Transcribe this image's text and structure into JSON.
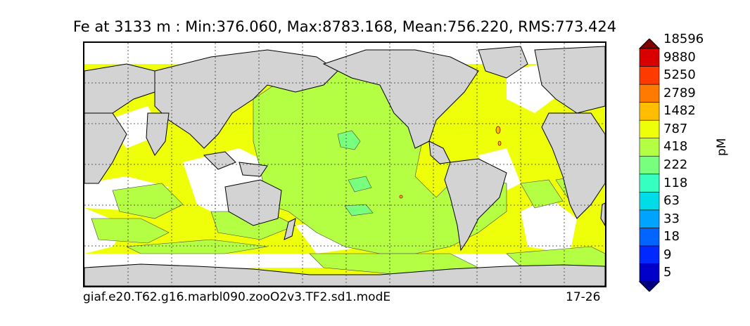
{
  "title": "Fe at 3133 m : Min:376.060, Max:8783.168, Mean:756.220, RMS:773.424",
  "footer": {
    "case_name": "giaf.e20.T62.g16.marbl090.zooO2v3.TF2.sd1.modE",
    "years": "17-26"
  },
  "colorbar": {
    "units": "pM",
    "tick_labels": [
      "5",
      "9",
      "18",
      "33",
      "63",
      "118",
      "222",
      "418",
      "787",
      "1482",
      "2789",
      "5250",
      "9880",
      "18596"
    ],
    "colors": [
      "#00007f",
      "#0000c8",
      "#0028ff",
      "#0064ff",
      "#00a4ff",
      "#00dce8",
      "#35ffc1",
      "#77ff7d",
      "#b4ff44",
      "#efff0a",
      "#ffbd00",
      "#ff7a00",
      "#ff3a00",
      "#d90000",
      "#7f0000"
    ],
    "extend": "both"
  },
  "map": {
    "projection": "equirectangular",
    "land_color": "#d3d3d3",
    "missing_color": "#ffffff",
    "gridlines": "dotted",
    "dominant_levels": [
      "418-787",
      "787-1482",
      "222-418"
    ]
  }
}
